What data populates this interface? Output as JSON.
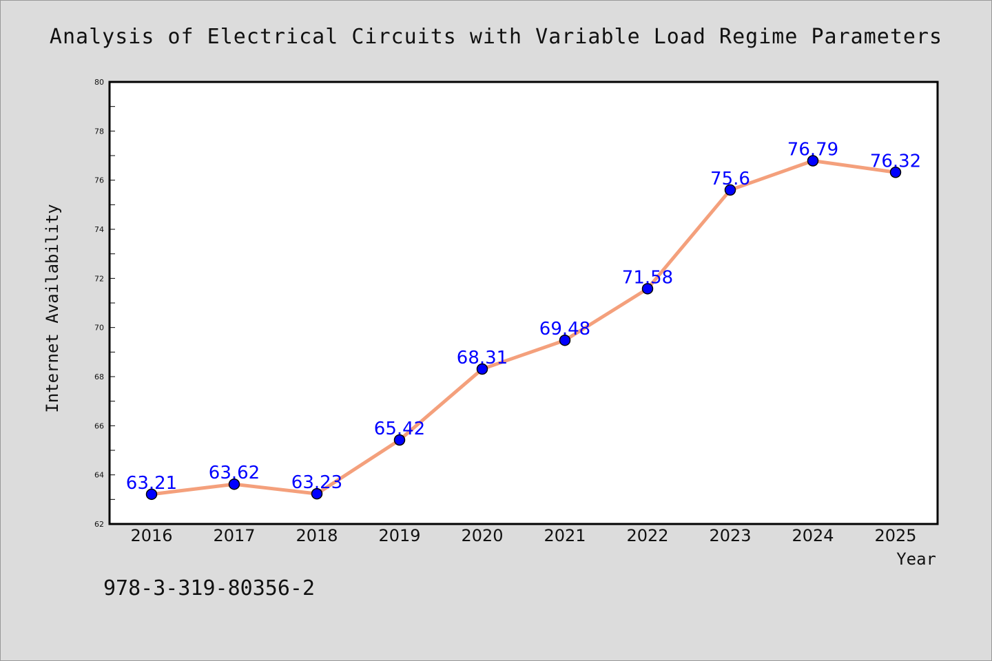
{
  "chart_data": {
    "type": "line",
    "title": "Analysis of Electrical Circuits with Variable Load Regime Parameters",
    "xlabel": "Year",
    "ylabel": "Internet Availability",
    "categories": [
      "2016",
      "2017",
      "2018",
      "2019",
      "2020",
      "2021",
      "2022",
      "2023",
      "2024",
      "2025"
    ],
    "values": [
      63.21,
      63.62,
      63.23,
      65.42,
      68.31,
      69.48,
      71.58,
      75.6,
      76.79,
      76.32
    ],
    "data_labels": [
      "63.21",
      "63.62",
      "63.23",
      "65.42",
      "68.31",
      "69.48",
      "71.58",
      "75.6",
      "76.79",
      "76.32"
    ],
    "ylim": [
      62,
      80
    ],
    "yticks": [
      "62",
      "64",
      "66",
      "68",
      "70",
      "72",
      "74",
      "76",
      "78",
      "80"
    ],
    "grid": false,
    "legend": "none",
    "colors": {
      "line": "#f4a07c",
      "marker": "#0000ff",
      "marker_edge": "#000000",
      "data_label": "#0000ff",
      "background": "#dcdcdc",
      "plot_background": "#ffffff"
    }
  },
  "footer": {
    "code": "978-3-319-80356-2"
  }
}
